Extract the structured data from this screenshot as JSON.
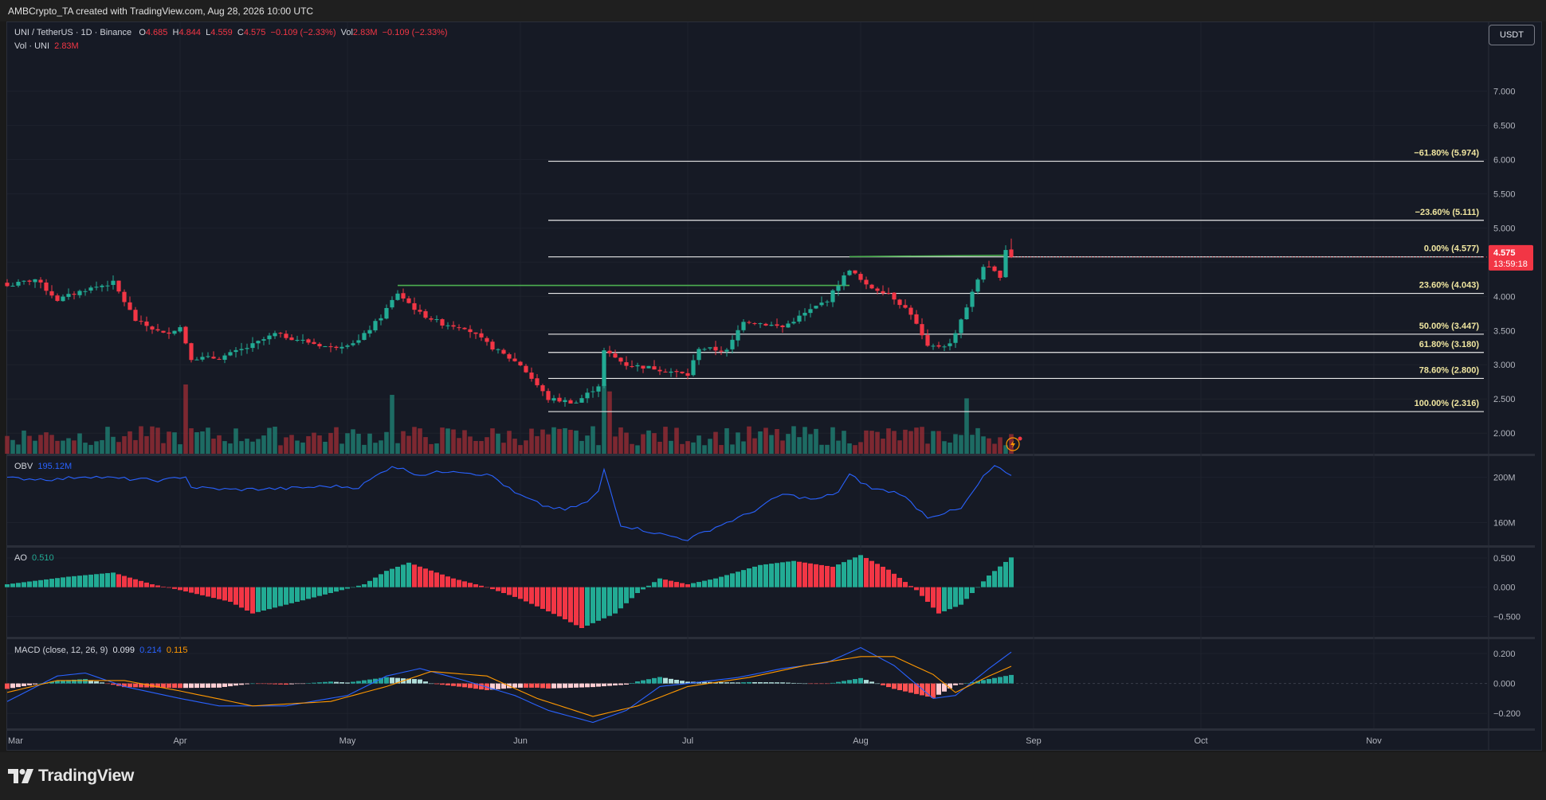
{
  "header": {
    "credit": "AMBCrypto_TA created with TradingView.com, Aug 28, 2026 10:00 UTC"
  },
  "legend": {
    "symbol": "UNI / TetherUS · 1D · Binance",
    "o_label": "O",
    "o_value": "4.685",
    "h_label": "H",
    "h_value": "4.844",
    "l_label": "L",
    "l_value": "4.559",
    "c_label": "C",
    "c_value": "4.575",
    "change": "−0.109 (−2.33%)",
    "vol_label": "Vol",
    "vol_value": "2.83M",
    "vol_change": "−0.109 (−2.33%)",
    "vol_row_label": "Vol · UNI",
    "vol_row_value": "2.83M",
    "obv_label": "OBV",
    "obv_value": "195.12M",
    "ao_label": "AO",
    "ao_value": "0.510",
    "macd_label": "MACD (close, 12, 26, 9)",
    "macd_hist": "0.099",
    "macd_line": "0.214",
    "macd_signal": "0.115"
  },
  "currency_button": "USDT",
  "price_badge": {
    "price": "4.575",
    "countdown": "13:59:18"
  },
  "branding": "TradingView",
  "colors": {
    "background": "#161a25",
    "up": "#22ab94",
    "down": "#f23645",
    "up_volume": "#1f7a6e",
    "down_volume": "#8f2c34",
    "obv": "#2962ff",
    "macd": "#2962ff",
    "signal": "#ff9800",
    "fib": "#e8e8e8",
    "trend": "#4caf50"
  },
  "chart_data": [
    {
      "type": "candlestick",
      "title": "UNI / TetherUS · 1D · Binance",
      "ylim": [
        1.7,
        7.4
      ],
      "y_ticks": [
        "7.000",
        "6.500",
        "6.000",
        "5.500",
        "5.000",
        "4.500",
        "4.000",
        "3.500",
        "3.000",
        "2.500",
        "2.000"
      ],
      "x_ticks": [
        "Mar",
        "Apr",
        "May",
        "Jun",
        "Jul",
        "Aug",
        "Sep",
        "Oct",
        "Nov"
      ],
      "last_price": 4.575,
      "close_path": [
        [
          "Mar 1",
          4.15
        ],
        [
          "Mar 6",
          4.25
        ],
        [
          "Mar 10",
          3.95
        ],
        [
          "Mar 15",
          4.1
        ],
        [
          "Mar 20",
          4.2
        ],
        [
          "Mar 24",
          3.65
        ],
        [
          "Mar 29",
          3.45
        ],
        [
          "Apr 1",
          3.55
        ],
        [
          "Apr 3",
          3.1
        ],
        [
          "Apr 8",
          3.1
        ],
        [
          "Apr 13",
          3.25
        ],
        [
          "Apr 18",
          3.45
        ],
        [
          "Apr 23",
          3.35
        ],
        [
          "Apr 28",
          3.25
        ],
        [
          "May 3",
          3.35
        ],
        [
          "May 7",
          3.7
        ],
        [
          "May 10",
          4.05
        ],
        [
          "May 14",
          3.75
        ],
        [
          "May 18",
          3.6
        ],
        [
          "May 22",
          3.55
        ],
        [
          "May 27",
          3.25
        ],
        [
          "Jun 1",
          3.0
        ],
        [
          "Jun 6",
          2.5
        ],
        [
          "Jun 11",
          2.45
        ],
        [
          "Jun 15",
          2.7
        ],
        [
          "Jun 16",
          3.2
        ],
        [
          "Jun 20",
          3.0
        ],
        [
          "Jun 25",
          2.95
        ],
        [
          "Jul 1",
          2.85
        ],
        [
          "Jul 3",
          3.25
        ],
        [
          "Jul 8",
          3.2
        ],
        [
          "Jul 11",
          3.65
        ],
        [
          "Jul 18",
          3.55
        ],
        [
          "Jul 26",
          3.95
        ],
        [
          "Jul 30",
          4.4
        ],
        [
          "Aug 2",
          4.15
        ],
        [
          "Aug 6",
          4.05
        ],
        [
          "Aug 10",
          3.75
        ],
        [
          "Aug 13",
          3.25
        ],
        [
          "Aug 17",
          3.3
        ],
        [
          "Aug 20",
          3.85
        ],
        [
          "Aug 23",
          4.45
        ],
        [
          "Aug 26",
          4.3
        ],
        [
          "Aug 27",
          4.69
        ],
        [
          "Aug 28",
          4.575
        ]
      ],
      "fib_levels": [
        {
          "label": "−61.80% (5.974)",
          "value": 5.974
        },
        {
          "label": "−23.60% (5.111)",
          "value": 5.111
        },
        {
          "label": "0.00% (4.577)",
          "value": 4.577
        },
        {
          "label": "23.60% (4.043)",
          "value": 4.043
        },
        {
          "label": "50.00% (3.447)",
          "value": 3.447
        },
        {
          "label": "61.80% (3.180)",
          "value": 3.18
        },
        {
          "label": "78.60% (2.800)",
          "value": 2.8
        },
        {
          "label": "100.00% (2.316)",
          "value": 2.316
        }
      ],
      "fib_start_date": "Jun 6",
      "trend_lines": [
        {
          "from": [
            "May 10",
            4.16
          ],
          "to": [
            "Jul 30",
            4.16
          ]
        },
        {
          "from": [
            "Jul 30",
            4.58
          ],
          "to": [
            "Aug 27",
            4.6
          ]
        }
      ]
    },
    {
      "type": "bar",
      "title": "Vol · UNI",
      "value": "2.83M",
      "spikes": [
        [
          "Apr 2",
          1.0
        ],
        [
          "May 9",
          0.85
        ],
        [
          "Jun 16",
          1.0
        ],
        [
          "Jun 17",
          0.9
        ],
        [
          "Aug 20",
          0.8
        ]
      ]
    },
    {
      "type": "line",
      "title": "OBV",
      "value": "195.12M",
      "y_ticks": [
        "200M",
        "160M"
      ],
      "ylim": [
        140,
        215
      ],
      "series": [
        [
          "Mar 1",
          199
        ],
        [
          "Mar 10",
          198
        ],
        [
          "Mar 15",
          201
        ],
        [
          "Mar 20",
          199
        ],
        [
          "Mar 29",
          197
        ],
        [
          "Apr 2",
          201
        ],
        [
          "Apr 3",
          191
        ],
        [
          "Apr 10",
          189
        ],
        [
          "Apr 20",
          190
        ],
        [
          "Apr 28",
          192
        ],
        [
          "May 3",
          191
        ],
        [
          "May 9",
          210
        ],
        [
          "May 14",
          202
        ],
        [
          "May 20",
          206
        ],
        [
          "May 27",
          201
        ],
        [
          "May 31",
          186
        ],
        [
          "Jun 5",
          175
        ],
        [
          "Jun 9",
          171
        ],
        [
          "Jun 13",
          178
        ],
        [
          "Jun 15",
          187
        ],
        [
          "Jun 16",
          207
        ],
        [
          "Jun 19",
          158
        ],
        [
          "Jun 26",
          150
        ],
        [
          "Jul 1",
          145
        ],
        [
          "Jul 6",
          156
        ],
        [
          "Jul 12",
          168
        ],
        [
          "Jul 18",
          185
        ],
        [
          "Jul 24",
          180
        ],
        [
          "Jul 28",
          187
        ],
        [
          "Jul 30",
          202
        ],
        [
          "Aug 3",
          190
        ],
        [
          "Aug 8",
          186
        ],
        [
          "Aug 13",
          165
        ],
        [
          "Aug 19",
          172
        ],
        [
          "Aug 23",
          200
        ],
        [
          "Aug 25",
          210
        ],
        [
          "Aug 28",
          200
        ]
      ]
    },
    {
      "type": "bar",
      "title": "AO",
      "value": "0.510",
      "y_ticks": [
        "0.500",
        "0.000",
        "−0.500"
      ],
      "ylim": [
        -0.85,
        0.65
      ],
      "series": [
        [
          "Mar 1",
          0.05
        ],
        [
          "Mar 12",
          0.18
        ],
        [
          "Mar 20",
          0.25
        ],
        [
          "Mar 27",
          0.05
        ],
        [
          "Apr 1",
          -0.05
        ],
        [
          "Apr 10",
          -0.25
        ],
        [
          "Apr 14",
          -0.45
        ],
        [
          "Apr 22",
          -0.25
        ],
        [
          "Apr 30",
          -0.05
        ],
        [
          "May 4",
          0.05
        ],
        [
          "May 8",
          0.28
        ],
        [
          "May 12",
          0.42
        ],
        [
          "May 20",
          0.15
        ],
        [
          "May 26",
          0.0
        ],
        [
          "Jun 1",
          -0.2
        ],
        [
          "Jun 8",
          -0.5
        ],
        [
          "Jun 12",
          -0.7
        ],
        [
          "Jun 18",
          -0.45
        ],
        [
          "Jun 22",
          -0.1
        ],
        [
          "Jun 26",
          0.15
        ],
        [
          "Jul 1",
          0.05
        ],
        [
          "Jul 6",
          0.15
        ],
        [
          "Jul 14",
          0.38
        ],
        [
          "Jul 20",
          0.45
        ],
        [
          "Jul 27",
          0.35
        ],
        [
          "Aug 1",
          0.55
        ],
        [
          "Aug 6",
          0.3
        ],
        [
          "Aug 11",
          -0.05
        ],
        [
          "Aug 15",
          -0.45
        ],
        [
          "Aug 19",
          -0.3
        ],
        [
          "Aug 24",
          0.2
        ],
        [
          "Aug 28",
          0.51
        ]
      ]
    },
    {
      "type": "line",
      "title": "MACD (close, 12, 26, 9)",
      "y_ticks": [
        "0.200",
        "0.000",
        "−0.200"
      ],
      "ylim": [
        -0.3,
        0.28
      ],
      "series": [
        {
          "name": "MACD",
          "values": [
            [
              "Mar 1",
              -0.12
            ],
            [
              "Mar 10",
              0.05
            ],
            [
              "Mar 15",
              0.07
            ],
            [
              "Mar 22",
              -0.02
            ],
            [
              "Apr 1",
              -0.1
            ],
            [
              "Apr 8",
              -0.15
            ],
            [
              "Apr 20",
              -0.15
            ],
            [
              "May 1",
              -0.08
            ],
            [
              "May 8",
              0.05
            ],
            [
              "May 14",
              0.1
            ],
            [
              "May 22",
              0.02
            ],
            [
              "May 31",
              -0.08
            ],
            [
              "Jun 6",
              -0.18
            ],
            [
              "Jun 14",
              -0.26
            ],
            [
              "Jun 20",
              -0.18
            ],
            [
              "Jun 26",
              -0.02
            ],
            [
              "Jul 1",
              0.0
            ],
            [
              "Jul 10",
              0.04
            ],
            [
              "Jul 18",
              0.1
            ],
            [
              "Jul 26",
              0.14
            ],
            [
              "Aug 1",
              0.24
            ],
            [
              "Aug 7",
              0.12
            ],
            [
              "Aug 14",
              -0.1
            ],
            [
              "Aug 18",
              -0.08
            ],
            [
              "Aug 24",
              0.1
            ],
            [
              "Aug 28",
              0.21
            ]
          ]
        },
        {
          "name": "Signal",
          "values": [
            [
              "Mar 1",
              -0.06
            ],
            [
              "Mar 10",
              0.02
            ],
            [
              "Mar 22",
              0.02
            ],
            [
              "Apr 1",
              -0.05
            ],
            [
              "Apr 14",
              -0.15
            ],
            [
              "Apr 28",
              -0.12
            ],
            [
              "May 8",
              -0.02
            ],
            [
              "May 16",
              0.08
            ],
            [
              "May 26",
              0.05
            ],
            [
              "Jun 4",
              -0.1
            ],
            [
              "Jun 14",
              -0.22
            ],
            [
              "Jun 22",
              -0.15
            ],
            [
              "Jul 1",
              -0.02
            ],
            [
              "Jul 12",
              0.04
            ],
            [
              "Jul 22",
              0.12
            ],
            [
              "Aug 1",
              0.18
            ],
            [
              "Aug 7",
              0.18
            ],
            [
              "Aug 14",
              0.06
            ],
            [
              "Aug 18",
              -0.06
            ],
            [
              "Aug 24",
              0.05
            ],
            [
              "Aug 28",
              0.115
            ]
          ]
        }
      ]
    }
  ]
}
